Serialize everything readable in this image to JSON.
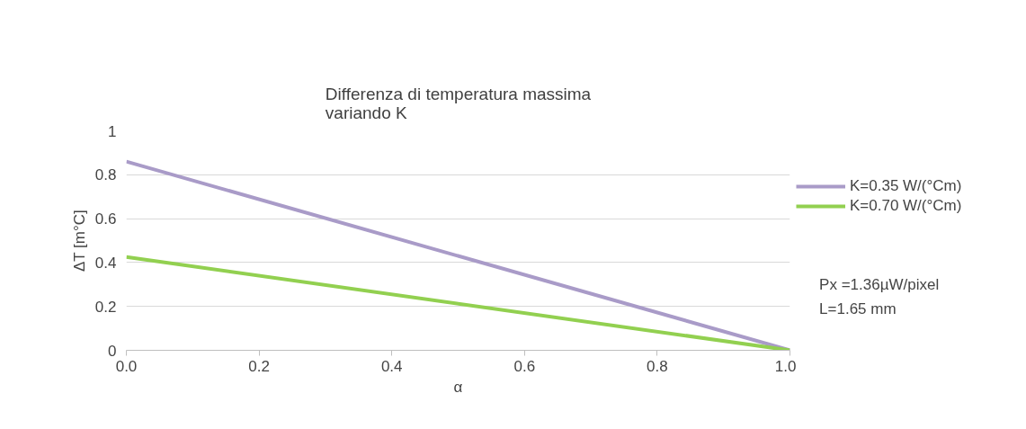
{
  "chart_data": {
    "type": "line",
    "title": "Differenza di temperatura massima\nvariando K",
    "xlabel": "α",
    "ylabel": "ΔT [m°C]",
    "x": [
      0,
      1
    ],
    "series": [
      {
        "name": "K=0.35 W/(°Cm)",
        "color": "#a99bc8",
        "values": [
          0.86,
          0
        ]
      },
      {
        "name": "K=0.70 W/(°Cm)",
        "color": "#92d050",
        "values": [
          0.425,
          0
        ]
      }
    ],
    "xlim": [
      0,
      1
    ],
    "ylim": [
      0,
      1
    ],
    "xticks": [
      {
        "value": 0,
        "label": "0.0"
      },
      {
        "value": 0.2,
        "label": "0.2"
      },
      {
        "value": 0.4,
        "label": "0.4"
      },
      {
        "value": 0.6,
        "label": "0.6"
      },
      {
        "value": 0.8,
        "label": "0.8"
      },
      {
        "value": 1,
        "label": "1.0"
      }
    ],
    "yticks": [
      0,
      0.2,
      0.4,
      0.6,
      0.8,
      1
    ],
    "grid": "y",
    "legend": "right",
    "marker": "none",
    "line_style": "solid",
    "annotations": [
      "Px =1.36µW/pixel",
      "L=1.65 mm"
    ]
  }
}
